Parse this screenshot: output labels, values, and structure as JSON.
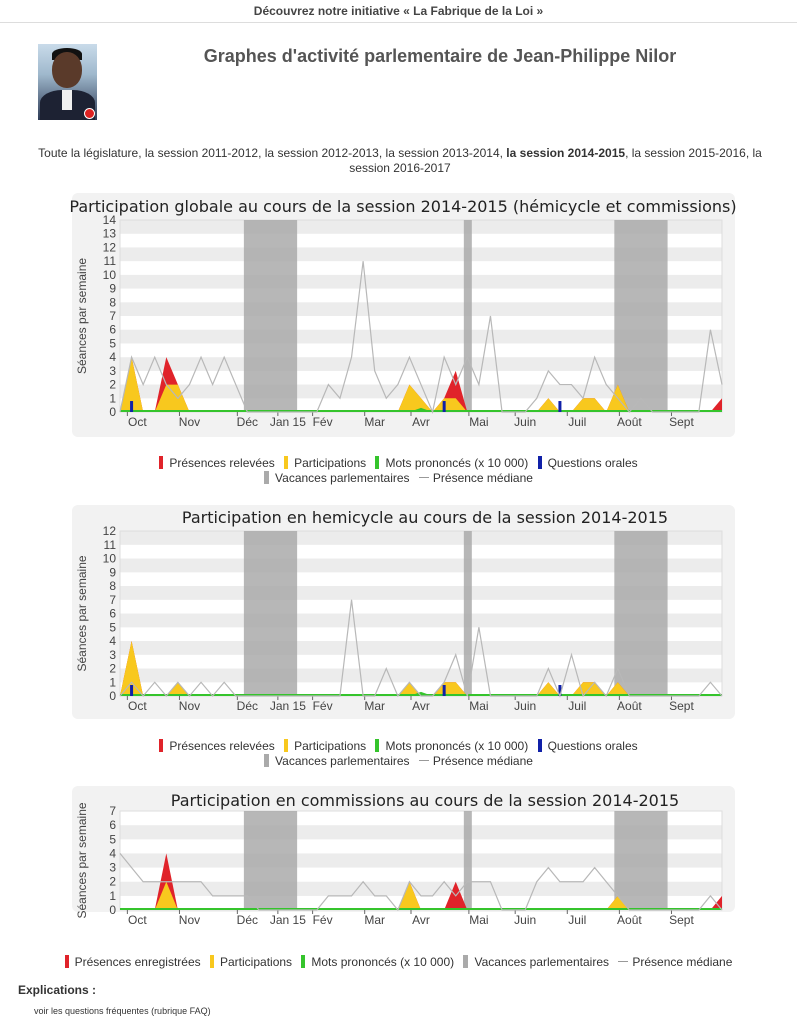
{
  "header": {
    "initiative": "Découvrez notre initiative « La Fabrique de la Loi »"
  },
  "page": {
    "title": "Graphes d'activité parlementaire de Jean-Philippe Nilor"
  },
  "sessions": {
    "items": [
      "Toute la législature",
      "la session 2011-2012",
      "la session 2012-2013",
      "la session 2013-2014",
      "la session 2014-2015",
      "la session 2015-2016",
      "la session 2016-2017"
    ],
    "current": 4
  },
  "colors": {
    "presences": "#e0232a",
    "participations": "#f8c81e",
    "mots": "#35c42c",
    "questions": "#1020a8",
    "vacances": "#aaaaaa",
    "mediane": "#b8b8b8",
    "band": "#ececec",
    "frame": "#f2f2f2"
  },
  "months": [
    "Oct",
    "Nov",
    "Déc",
    "Jan 15",
    "Fév",
    "Mar",
    "Avr",
    "Mai",
    "Juin",
    "Juil",
    "Août",
    "Sept"
  ],
  "legend1": {
    "presences": "Présences relevées",
    "participations": "Participations",
    "mots": "Mots prononcés (x 10 000)",
    "questions": "Questions orales",
    "vacances": "Vacances parlementaires",
    "mediane": "Présence médiane"
  },
  "legend2": {
    "presences": "Présences relevées",
    "participations": "Participations",
    "mots": "Mots prononcés (x 10 000)",
    "questions": "Questions orales",
    "vacances": "Vacances parlementaires",
    "mediane": "Présence médiane"
  },
  "legend3": {
    "presences": "Présences enregistrées",
    "participations": "Participations",
    "mots": "Mots prononcés (x 10 000)",
    "vacances": "Vacances parlementaires",
    "mediane": "Présence médiane"
  },
  "chart_data": [
    {
      "type": "area",
      "title": "Participation globale au cours de la session 2014-2015 (hémicycle et commissions)",
      "ylabel": "Séances par semaine",
      "ylim": [
        0,
        14
      ],
      "weeks": 53,
      "vacations": [
        [
          11,
          15
        ],
        [
          30,
          30
        ],
        [
          43,
          47
        ]
      ],
      "series": [
        {
          "name": "Présences relevées",
          "values": [
            0,
            4,
            0,
            0,
            4,
            2,
            0,
            0,
            0,
            0,
            0,
            0,
            0,
            0,
            0,
            0,
            0,
            0,
            0,
            0,
            0,
            0,
            0,
            0,
            0,
            2,
            1,
            0,
            1,
            3,
            0,
            0,
            0,
            0,
            0,
            0,
            0,
            1,
            0,
            0,
            1,
            1,
            0,
            2,
            0,
            0,
            0,
            0,
            0,
            0,
            0,
            0,
            1
          ]
        },
        {
          "name": "Participations",
          "values": [
            0,
            4,
            0,
            0,
            2,
            2,
            0,
            0,
            0,
            0,
            0,
            0,
            0,
            0,
            0,
            0,
            0,
            0,
            0,
            0,
            0,
            0,
            0,
            0,
            0,
            2,
            1,
            0,
            1,
            1,
            0,
            0,
            0,
            0,
            0,
            0,
            0,
            1,
            0,
            0,
            1,
            1,
            0,
            2,
            0,
            0,
            0,
            0,
            0,
            0,
            0,
            0,
            0
          ]
        },
        {
          "name": "Mots prononcés (x 10 000)",
          "values": [
            0,
            0,
            0,
            0,
            0,
            0,
            0,
            0,
            0,
            0,
            0,
            0,
            0,
            0,
            0,
            0,
            0,
            0,
            0,
            0,
            0,
            0,
            0,
            0,
            0,
            0,
            0.3,
            0,
            0,
            0,
            0,
            0,
            0,
            0,
            0,
            0,
            0,
            0,
            0,
            0,
            0,
            0,
            0,
            0,
            0,
            0,
            0,
            0,
            0,
            0,
            0,
            0,
            0
          ]
        },
        {
          "name": "Questions orales",
          "values": [
            0,
            0.8,
            0,
            0,
            0,
            0,
            0,
            0,
            0,
            0,
            0,
            0,
            0,
            0,
            0,
            0,
            0,
            0,
            0,
            0,
            0,
            0,
            0,
            0,
            0,
            0,
            0,
            0,
            0.8,
            0,
            0,
            0,
            0,
            0,
            0,
            0,
            0,
            0,
            0.8,
            0,
            0,
            0,
            0,
            0,
            0,
            0,
            0,
            0,
            0,
            0,
            0,
            0,
            0
          ]
        },
        {
          "name": "Présence médiane",
          "values": [
            0,
            4,
            2,
            4,
            2,
            1,
            2,
            4,
            2,
            4,
            2,
            0,
            0,
            0,
            0,
            0,
            0,
            0,
            2,
            1,
            4,
            11,
            3,
            1,
            2,
            4,
            2,
            0,
            4,
            2,
            4,
            2,
            7,
            0,
            0,
            0,
            1,
            3,
            2,
            2,
            1,
            4,
            2,
            1,
            0,
            1,
            0,
            0,
            0,
            0,
            0,
            6,
            2
          ]
        }
      ]
    },
    {
      "type": "area",
      "title": "Participation en hemicycle au cours de la session 2014-2015",
      "ylabel": "Séances par semaine",
      "ylim": [
        0,
        12
      ],
      "weeks": 53,
      "vacations": [
        [
          11,
          15
        ],
        [
          30,
          30
        ],
        [
          43,
          47
        ]
      ],
      "series": [
        {
          "name": "Présences relevées",
          "values": [
            0,
            4,
            0,
            0,
            0,
            1,
            0,
            0,
            0,
            0,
            0,
            0,
            0,
            0,
            0,
            0,
            0,
            0,
            0,
            0,
            0,
            0,
            0,
            0,
            0,
            1,
            0,
            0,
            1,
            1,
            0,
            0,
            0,
            0,
            0,
            0,
            0,
            1,
            0,
            0,
            1,
            1,
            0,
            1,
            0,
            0,
            0,
            0,
            0,
            0,
            0,
            0,
            0
          ]
        },
        {
          "name": "Participations",
          "values": [
            0,
            4,
            0,
            0,
            0,
            1,
            0,
            0,
            0,
            0,
            0,
            0,
            0,
            0,
            0,
            0,
            0,
            0,
            0,
            0,
            0,
            0,
            0,
            0,
            0,
            1,
            0,
            0,
            1,
            1,
            0,
            0,
            0,
            0,
            0,
            0,
            0,
            1,
            0,
            0,
            1,
            1,
            0,
            1,
            0,
            0,
            0,
            0,
            0,
            0,
            0,
            0,
            0
          ]
        },
        {
          "name": "Mots prononcés (x 10 000)",
          "values": [
            0,
            0,
            0,
            0,
            0,
            0,
            0,
            0,
            0,
            0,
            0,
            0,
            0,
            0,
            0,
            0,
            0,
            0,
            0,
            0,
            0,
            0,
            0,
            0,
            0,
            0,
            0.3,
            0,
            0,
            0,
            0,
            0,
            0,
            0,
            0,
            0,
            0,
            0,
            0,
            0,
            0,
            0,
            0,
            0,
            0,
            0,
            0,
            0,
            0,
            0,
            0,
            0,
            0
          ]
        },
        {
          "name": "Questions orales",
          "values": [
            0,
            0.8,
            0,
            0,
            0,
            0,
            0,
            0,
            0,
            0,
            0,
            0,
            0,
            0,
            0,
            0,
            0,
            0,
            0,
            0,
            0,
            0,
            0,
            0,
            0,
            0,
            0,
            0,
            0.8,
            0,
            0,
            0,
            0,
            0,
            0,
            0,
            0,
            0,
            0.8,
            0,
            0,
            0,
            0,
            0,
            0,
            0,
            0,
            0,
            0,
            0,
            0,
            0,
            0
          ]
        },
        {
          "name": "Présence médiane",
          "values": [
            0,
            1,
            0,
            1,
            0,
            1,
            0,
            1,
            0,
            1,
            0,
            0,
            0,
            0,
            0,
            0,
            0,
            0,
            0,
            0,
            7,
            0,
            0,
            2,
            0,
            1,
            0,
            0,
            1,
            3,
            0,
            5,
            0,
            0,
            0,
            0,
            0,
            2,
            0,
            3,
            0,
            1,
            0,
            2,
            0,
            0,
            0,
            0,
            0,
            0,
            0,
            1,
            0
          ]
        }
      ]
    },
    {
      "type": "area",
      "title": "Participation en commissions au cours de la session 2014-2015",
      "ylabel": "Séances par semaine",
      "ylim": [
        0,
        7
      ],
      "weeks": 53,
      "vacations": [
        [
          11,
          15
        ],
        [
          30,
          30
        ],
        [
          43,
          47
        ]
      ],
      "series": [
        {
          "name": "Présences enregistrées",
          "values": [
            0,
            0,
            0,
            0,
            4,
            0,
            0,
            0,
            0,
            0,
            0,
            0,
            0,
            0,
            0,
            0,
            0,
            0,
            0,
            0,
            0,
            0,
            0,
            0,
            0,
            2,
            0,
            0,
            0,
            2,
            0,
            0,
            0,
            0,
            0,
            0,
            0,
            0,
            0,
            0,
            0,
            0,
            0,
            1,
            0,
            0,
            0,
            0,
            0,
            0,
            0,
            0,
            1
          ]
        },
        {
          "name": "Participations",
          "values": [
            0,
            0,
            0,
            0,
            2,
            0,
            0,
            0,
            0,
            0,
            0,
            0,
            0,
            0,
            0,
            0,
            0,
            0,
            0,
            0,
            0,
            0,
            0,
            0,
            0,
            2,
            0,
            0,
            0,
            0,
            0,
            0,
            0,
            0,
            0,
            0,
            0,
            0,
            0,
            0,
            0,
            0,
            0,
            1,
            0,
            0,
            0,
            0,
            0,
            0,
            0,
            0,
            0
          ]
        },
        {
          "name": "Mots prononcés (x 10 000)",
          "values": [
            0,
            0,
            0,
            0,
            0,
            0,
            0,
            0,
            0,
            0,
            0,
            0,
            0,
            0,
            0,
            0,
            0,
            0,
            0,
            0,
            0,
            0,
            0,
            0,
            0,
            0,
            0,
            0,
            0,
            0,
            0,
            0,
            0,
            0,
            0,
            0,
            0,
            0,
            0,
            0,
            0,
            0,
            0,
            0,
            0,
            0,
            0,
            0,
            0,
            0,
            0,
            0,
            0
          ]
        },
        {
          "name": "Présence médiane",
          "values": [
            4,
            3,
            2,
            2,
            2,
            2,
            2,
            2,
            1,
            1,
            1,
            1,
            0,
            0,
            0,
            0,
            0,
            0,
            1,
            1,
            1,
            2,
            1,
            1,
            0,
            2,
            1,
            1,
            2,
            1,
            2,
            2,
            2,
            0,
            0,
            0,
            2,
            3,
            2,
            2,
            2,
            3,
            2,
            1,
            0,
            0,
            0,
            0,
            0,
            0,
            0,
            1,
            0
          ]
        }
      ]
    }
  ],
  "footer": {
    "explications": "Explications :",
    "faq": "voir les questions fréquentes (rubrique FAQ)"
  }
}
